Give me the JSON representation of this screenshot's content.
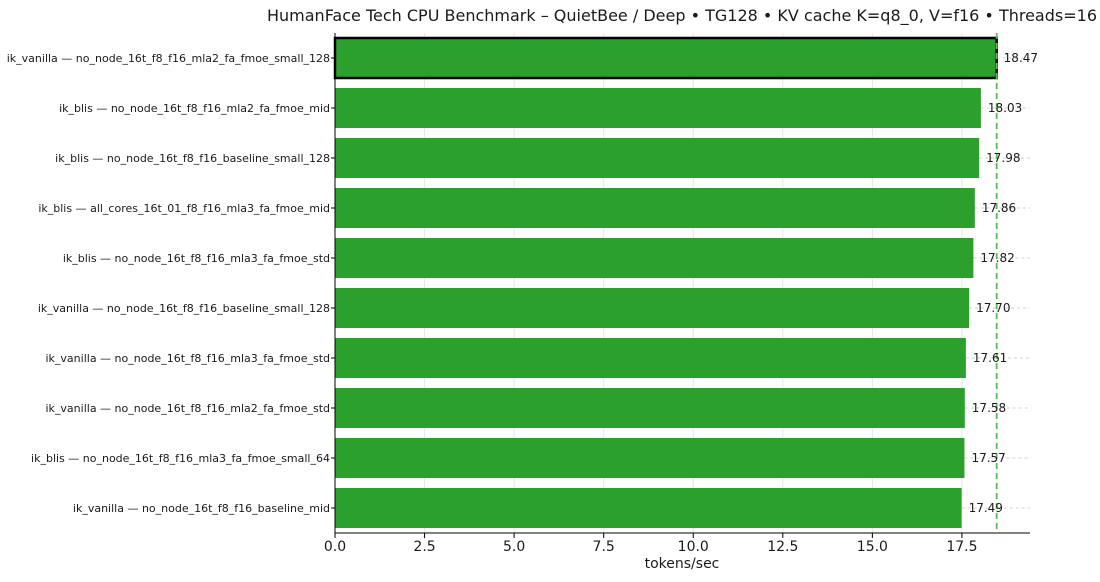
{
  "chart_data": {
    "type": "bar",
    "orientation": "horizontal",
    "title": "HumanFace Tech CPU Benchmark – QuietBee / Deep • TG128 • KV cache K=q8_0, V=f16 • Threads=16",
    "xlabel": "tokens/sec",
    "ylabel": "",
    "xlim": [
      0,
      19.4
    ],
    "xticks": [
      0.0,
      2.5,
      5.0,
      7.5,
      10.0,
      12.5,
      15.0,
      17.5
    ],
    "xtick_labels": [
      "0.0",
      "2.5",
      "5.0",
      "7.5",
      "10.0",
      "12.5",
      "15.0",
      "17.5"
    ],
    "grid": true,
    "bar_color": "#2ca02c",
    "highlight_edge_color": "#000000",
    "reference_line": {
      "value": 18.47,
      "color": "#5cb85c",
      "style": "dashed"
    },
    "categories": [
      "ik_vanilla — no_node_16t_f8_f16_mla2_fa_fmoe_small_128",
      "ik_blis — no_node_16t_f8_f16_mla2_fa_fmoe_mid",
      "ik_blis — no_node_16t_f8_f16_baseline_small_128",
      "ik_blis — all_cores_16t_01_f8_f16_mla3_fa_fmoe_mid",
      "ik_blis — no_node_16t_f8_f16_mla3_fa_fmoe_std",
      "ik_vanilla — no_node_16t_f8_f16_baseline_small_128",
      "ik_vanilla — no_node_16t_f8_f16_mla3_fa_fmoe_std",
      "ik_vanilla — no_node_16t_f8_f16_mla2_fa_fmoe_std",
      "ik_blis — no_node_16t_f8_f16_mla3_fa_fmoe_small_64",
      "ik_vanilla — no_node_16t_f8_f16_baseline_mid"
    ],
    "values": [
      18.47,
      18.03,
      17.98,
      17.86,
      17.82,
      17.7,
      17.61,
      17.58,
      17.57,
      17.49
    ],
    "value_labels": [
      "18.47",
      "18.03",
      "17.98",
      "17.86",
      "17.82",
      "17.70",
      "17.61",
      "17.58",
      "17.57",
      "17.49"
    ],
    "highlight_index": 0
  }
}
